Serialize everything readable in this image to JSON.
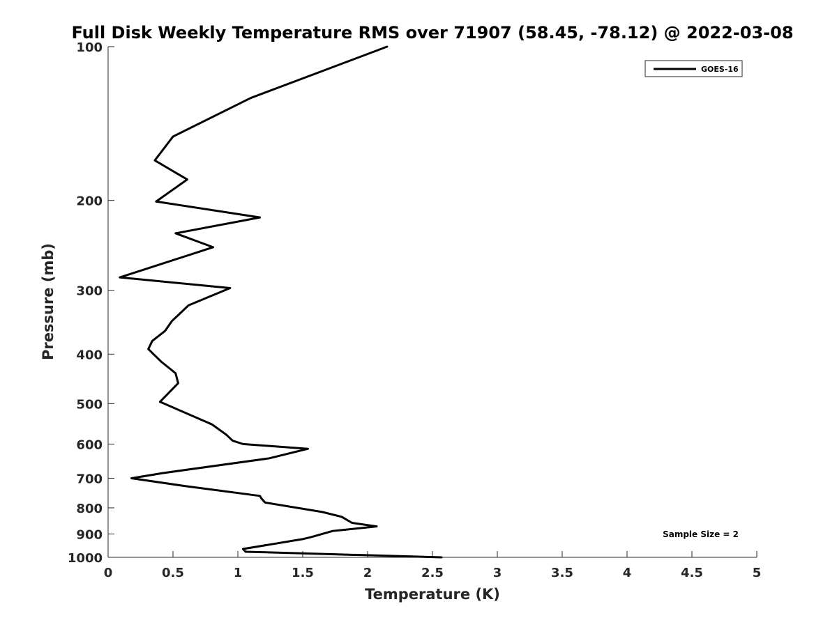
{
  "chart_data": {
    "type": "line",
    "title": "Full Disk Weekly Temperature RMS over 71907 (58.45, -78.12) @ 2022-03-08",
    "xlabel": "Temperature (K)",
    "ylabel": "Pressure (mb)",
    "xlim": [
      0,
      5
    ],
    "ylim": [
      1000,
      100
    ],
    "yscale": "log",
    "y_reversed": true,
    "grid": false,
    "legend_position": "top-right",
    "x_ticks": [
      "0",
      "0.5",
      "1",
      "1.5",
      "2",
      "2.5",
      "3",
      "3.5",
      "4",
      "4.5",
      "5"
    ],
    "y_ticks": [
      "100",
      "200",
      "300",
      "400",
      "500",
      "600",
      "700",
      "800",
      "900",
      "1000"
    ],
    "series": [
      {
        "name": "GOES-16",
        "color": "#000000",
        "x": [
          2.15,
          1.1,
          0.5,
          0.36,
          0.61,
          0.37,
          1.17,
          0.52,
          0.81,
          0.09,
          0.94,
          0.62,
          0.49,
          0.44,
          0.34,
          0.31,
          0.41,
          0.52,
          0.54,
          0.4,
          0.8,
          0.91,
          0.96,
          1.04,
          1.54,
          1.24,
          0.42,
          0.18,
          0.59,
          1.17,
          1.18,
          1.21,
          1.65,
          1.8,
          1.88,
          2.07,
          1.73,
          1.57,
          1.51,
          1.04,
          1.06,
          2.57
        ],
        "y": [
          100,
          126,
          150,
          167,
          182,
          201,
          216,
          232,
          247,
          283,
          297,
          321,
          345,
          360,
          377,
          391,
          414,
          436,
          456,
          496,
          549,
          575,
          591,
          600,
          613,
          640,
          684,
          700,
          725,
          758,
          766,
          781,
          815,
          833,
          856,
          870,
          888,
          912,
          920,
          963,
          975,
          1000
        ]
      }
    ],
    "legend": {
      "entries": [
        "GOES-16"
      ]
    },
    "annotation": "Sample Size = 2"
  }
}
